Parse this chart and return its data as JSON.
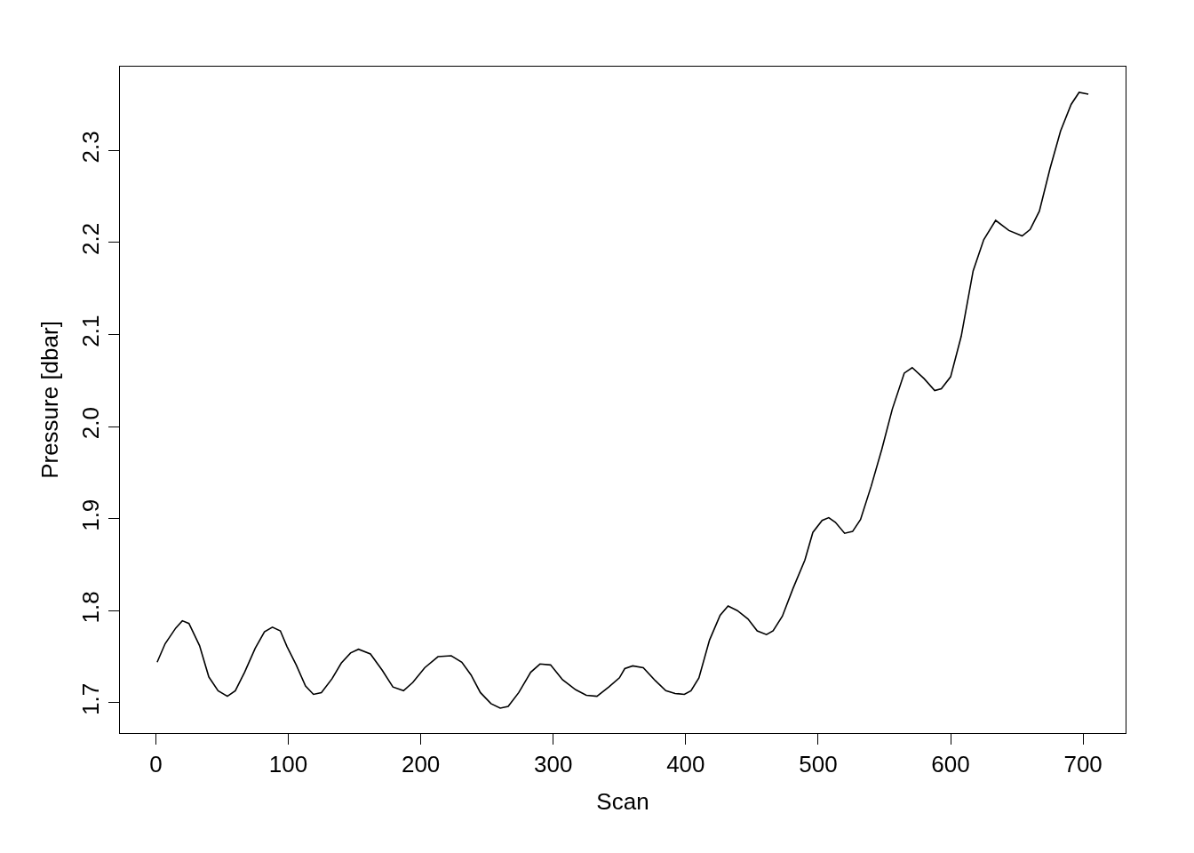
{
  "chart_data": {
    "type": "line",
    "xlabel": "Scan",
    "ylabel": "Pressure [dbar]",
    "x": [
      1,
      7,
      15,
      20,
      25,
      33,
      40,
      47,
      54,
      60,
      67,
      75,
      82,
      88,
      94,
      99,
      106,
      113,
      119,
      125,
      133,
      140,
      147,
      153,
      162,
      171,
      179,
      187,
      194,
      203,
      213,
      223,
      231,
      238,
      245,
      253,
      260,
      266,
      274,
      283,
      290,
      298,
      307,
      317,
      325,
      333,
      342,
      350,
      354,
      360,
      368,
      377,
      385,
      392,
      399,
      404,
      410,
      418,
      426,
      432,
      439,
      447,
      454,
      461,
      466,
      473,
      481,
      490,
      496,
      503,
      508,
      513,
      520,
      526,
      532,
      540,
      548,
      556,
      565,
      571,
      580,
      588,
      593,
      600,
      608,
      617,
      625,
      634,
      644,
      654,
      660,
      667,
      675,
      683,
      691,
      697,
      704
    ],
    "series": [
      {
        "color": "#000000",
        "values": [
          1.744,
          1.764,
          1.781,
          1.789,
          1.786,
          1.762,
          1.728,
          1.713,
          1.707,
          1.713,
          1.733,
          1.759,
          1.777,
          1.782,
          1.778,
          1.761,
          1.741,
          1.718,
          1.709,
          1.711,
          1.726,
          1.743,
          1.754,
          1.758,
          1.753,
          1.735,
          1.717,
          1.713,
          1.722,
          1.738,
          1.75,
          1.751,
          1.744,
          1.73,
          1.711,
          1.699,
          1.694,
          1.696,
          1.711,
          1.733,
          1.742,
          1.741,
          1.725,
          1.714,
          1.708,
          1.707,
          1.717,
          1.727,
          1.737,
          1.74,
          1.738,
          1.724,
          1.713,
          1.71,
          1.709,
          1.713,
          1.727,
          1.768,
          1.795,
          1.805,
          1.8,
          1.791,
          1.778,
          1.774,
          1.778,
          1.794,
          1.824,
          1.855,
          1.885,
          1.898,
          1.901,
          1.896,
          1.884,
          1.886,
          1.899,
          1.935,
          1.975,
          2.019,
          2.058,
          2.064,
          2.052,
          2.039,
          2.041,
          2.054,
          2.098,
          2.169,
          2.203,
          2.224,
          2.213,
          2.207,
          2.214,
          2.234,
          2.28,
          2.321,
          2.35,
          2.363,
          2.361
        ]
      }
    ],
    "xlim": [
      -27.1,
      732.1
    ],
    "xticks": [
      0,
      100,
      200,
      300,
      400,
      500,
      600,
      700
    ],
    "ylim": [
      1.667,
      2.391
    ],
    "yticks": [
      {
        "value": 1.7,
        "label": "1.7"
      },
      {
        "value": 1.8,
        "label": "1.8"
      },
      {
        "value": 1.9,
        "label": "1.9"
      },
      {
        "value": 2.0,
        "label": "2.0"
      },
      {
        "value": 2.1,
        "label": "2.1"
      },
      {
        "value": 2.2,
        "label": "2.2"
      },
      {
        "value": 2.3,
        "label": "2.3"
      }
    ],
    "grid": false,
    "marker": "none",
    "line_style": "solid"
  }
}
